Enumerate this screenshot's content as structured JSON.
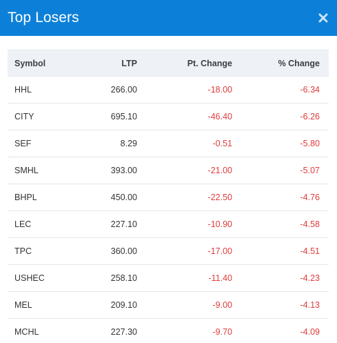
{
  "header": {
    "title": "Top Losers"
  },
  "table": {
    "columns": [
      "Symbol",
      "LTP",
      "Pt. Change",
      "% Change"
    ],
    "rows": [
      {
        "symbol": "HHL",
        "ltp": "266.00",
        "pt_change": "-18.00",
        "pct_change": "-6.34"
      },
      {
        "symbol": "CITY",
        "ltp": "695.10",
        "pt_change": "-46.40",
        "pct_change": "-6.26"
      },
      {
        "symbol": "SEF",
        "ltp": "8.29",
        "pt_change": "-0.51",
        "pct_change": "-5.80"
      },
      {
        "symbol": "SMHL",
        "ltp": "393.00",
        "pt_change": "-21.00",
        "pct_change": "-5.07"
      },
      {
        "symbol": "BHPL",
        "ltp": "450.00",
        "pt_change": "-22.50",
        "pct_change": "-4.76"
      },
      {
        "symbol": "LEC",
        "ltp": "227.10",
        "pt_change": "-10.90",
        "pct_change": "-4.58"
      },
      {
        "symbol": "TPC",
        "ltp": "360.00",
        "pt_change": "-17.00",
        "pct_change": "-4.51"
      },
      {
        "symbol": "USHEC",
        "ltp": "258.10",
        "pt_change": "-11.40",
        "pct_change": "-4.23"
      },
      {
        "symbol": "MEL",
        "ltp": "209.10",
        "pt_change": "-9.00",
        "pct_change": "-4.13"
      },
      {
        "symbol": "MCHL",
        "ltp": "227.30",
        "pt_change": "-9.70",
        "pct_change": "-4.09"
      }
    ]
  },
  "colors": {
    "header_bg": "#0c80d8",
    "negative": "#e03c3c"
  },
  "icons": {
    "close": "close-icon"
  }
}
